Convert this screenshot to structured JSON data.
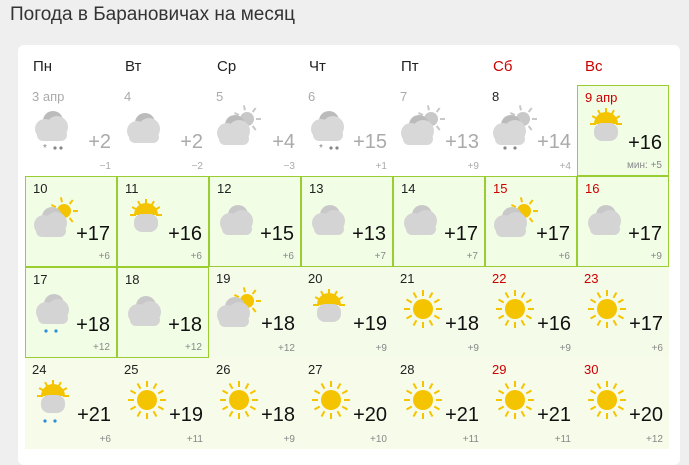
{
  "title": "Погода в Барановичах на месяц",
  "weekdays": [
    {
      "label": "Пн",
      "weekend": false
    },
    {
      "label": "Вт",
      "weekend": false
    },
    {
      "label": "Ср",
      "weekend": false
    },
    {
      "label": "Чт",
      "weekend": false
    },
    {
      "label": "Пт",
      "weekend": false
    },
    {
      "label": "Сб",
      "weekend": true
    },
    {
      "label": "Вс",
      "weekend": true
    }
  ],
  "colors": {
    "weekend": "#cc0000",
    "border": "#9acd32",
    "sun": "#f5c400",
    "cloud": "#d4d4d4",
    "rain": "#2a8fd8"
  },
  "days": [
    {
      "date": "3 апр",
      "icon": "cloudy-sleet",
      "max": "+2",
      "min": "−1",
      "state": "past"
    },
    {
      "date": "4",
      "icon": "cloudy",
      "max": "+2",
      "min": "−2",
      "state": "past"
    },
    {
      "date": "5",
      "icon": "partly-cloudy",
      "max": "+4",
      "min": "−3",
      "state": "past"
    },
    {
      "date": "6",
      "icon": "cloudy-sleet",
      "max": "+15",
      "min": "+1",
      "state": "past"
    },
    {
      "date": "7",
      "icon": "partly-cloudy",
      "max": "+13",
      "min": "+9",
      "state": "past"
    },
    {
      "date": "8",
      "icon": "partly-cloudy-rain",
      "max": "+14",
      "min": "+4",
      "state": "past",
      "dark_date": true
    },
    {
      "date": "9 апр",
      "icon": "sun-cloud",
      "max": "+16",
      "min": "мин: +5",
      "state": "today",
      "weekend": true
    },
    {
      "date": "10",
      "icon": "partly-cloudy",
      "max": "+17",
      "min": "+6",
      "state": "b"
    },
    {
      "date": "11",
      "icon": "sun-cloud",
      "max": "+16",
      "min": "+6",
      "state": "b"
    },
    {
      "date": "12",
      "icon": "cloudy",
      "max": "+15",
      "min": "+6",
      "state": "b"
    },
    {
      "date": "13",
      "icon": "cloudy",
      "max": "+13",
      "min": "+7",
      "state": "b"
    },
    {
      "date": "14",
      "icon": "cloudy",
      "max": "+17",
      "min": "+7",
      "state": "b"
    },
    {
      "date": "15",
      "icon": "partly-cloudy",
      "max": "+17",
      "min": "+6",
      "state": "b",
      "weekend": true
    },
    {
      "date": "16",
      "icon": "cloudy",
      "max": "+17",
      "min": "+9",
      "state": "b",
      "weekend": true
    },
    {
      "date": "17",
      "icon": "cloudy-rain",
      "max": "+18",
      "min": "+12",
      "state": "b"
    },
    {
      "date": "18",
      "icon": "cloudy",
      "max": "+18",
      "min": "+12",
      "state": "b"
    },
    {
      "date": "19",
      "icon": "partly-cloudy",
      "max": "+18",
      "min": "+12",
      "state": "g"
    },
    {
      "date": "20",
      "icon": "sun-cloud",
      "max": "+19",
      "min": "+9",
      "state": "g"
    },
    {
      "date": "21",
      "icon": "sun",
      "max": "+18",
      "min": "+9",
      "state": "g"
    },
    {
      "date": "22",
      "icon": "sun",
      "max": "+16",
      "min": "+9",
      "state": "g",
      "weekend": true
    },
    {
      "date": "23",
      "icon": "sun",
      "max": "+17",
      "min": "+6",
      "state": "g",
      "weekend": true
    },
    {
      "date": "24",
      "icon": "sun-cloud-rain",
      "max": "+21",
      "min": "+6",
      "state": "y"
    },
    {
      "date": "25",
      "icon": "sun",
      "max": "+19",
      "min": "+11",
      "state": "y"
    },
    {
      "date": "26",
      "icon": "sun",
      "max": "+18",
      "min": "+9",
      "state": "y"
    },
    {
      "date": "27",
      "icon": "sun",
      "max": "+20",
      "min": "+10",
      "state": "y"
    },
    {
      "date": "28",
      "icon": "sun",
      "max": "+21",
      "min": "+11",
      "state": "y"
    },
    {
      "date": "29",
      "icon": "sun",
      "max": "+21",
      "min": "+11",
      "state": "y",
      "weekend": true
    },
    {
      "date": "30",
      "icon": "sun",
      "max": "+20",
      "min": "+12",
      "state": "y",
      "weekend": true
    }
  ]
}
